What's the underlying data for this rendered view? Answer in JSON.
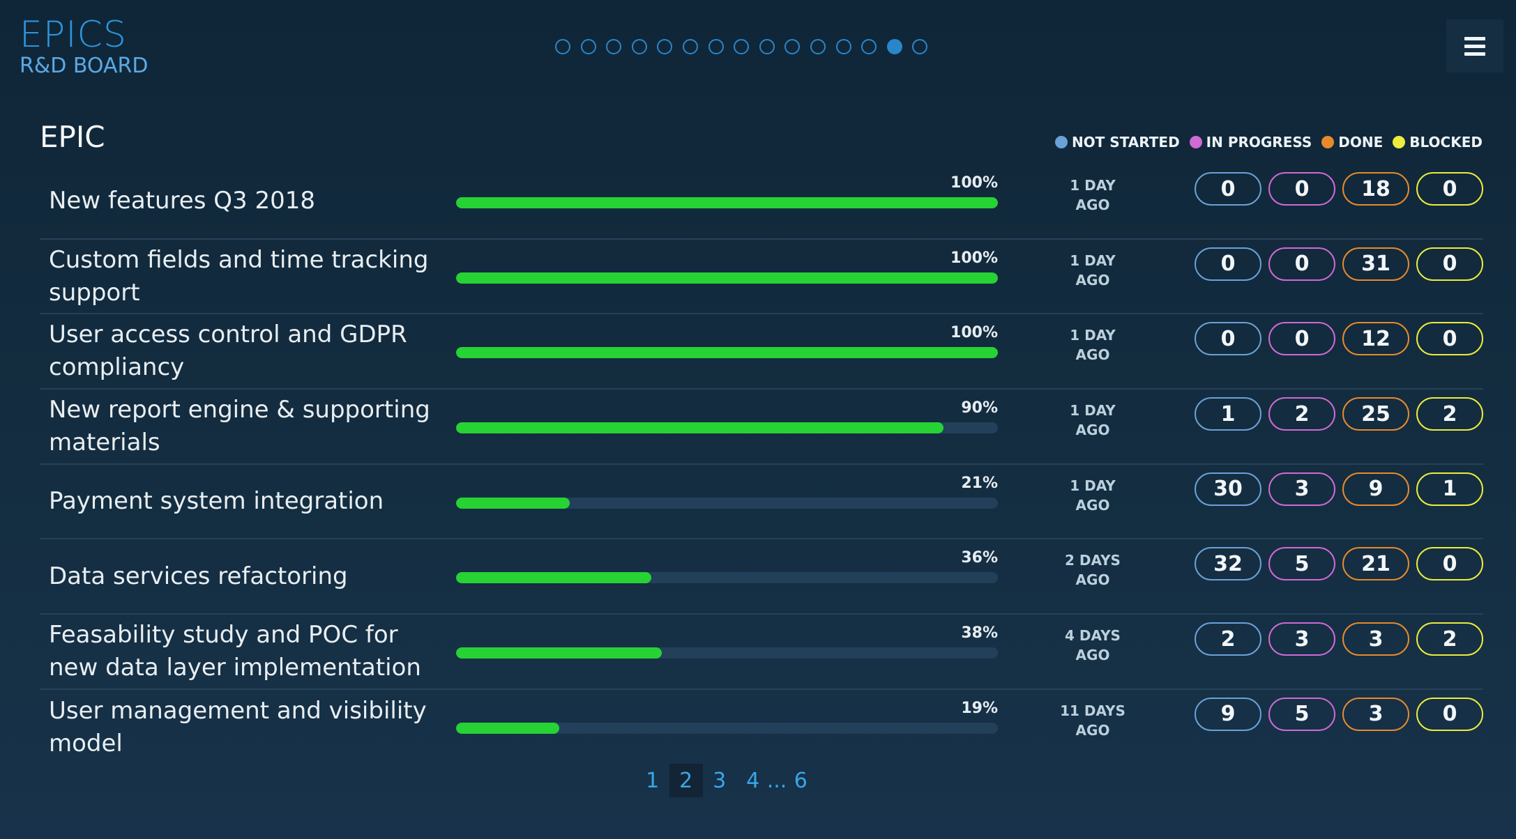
{
  "header": {
    "title": "EPICS",
    "subtitle": "R&D BOARD",
    "carousel_total": 15,
    "carousel_active": 14
  },
  "section": {
    "title": "EPIC"
  },
  "legend": [
    {
      "label": "NOT STARTED",
      "color": "#6aa2d8"
    },
    {
      "label": "IN PROGRESS",
      "color": "#d06ad4"
    },
    {
      "label": "DONE",
      "color": "#e88a2c"
    },
    {
      "label": "BLOCKED",
      "color": "#ecec3e"
    }
  ],
  "epics": [
    {
      "name": "New features Q3 2018",
      "percent": "100%",
      "progress": 1.0,
      "ago_line1": "1 DAY",
      "ago_line2": "AGO",
      "not_started": "0",
      "in_progress": "0",
      "done": "18",
      "blocked": "0"
    },
    {
      "name": "Custom fields and time tracking support",
      "percent": "100%",
      "progress": 1.0,
      "ago_line1": "1 DAY",
      "ago_line2": "AGO",
      "not_started": "0",
      "in_progress": "0",
      "done": "31",
      "blocked": "0"
    },
    {
      "name": "User access control and GDPR compliancy",
      "percent": "100%",
      "progress": 1.0,
      "ago_line1": "1 DAY",
      "ago_line2": "AGO",
      "not_started": "0",
      "in_progress": "0",
      "done": "12",
      "blocked": "0"
    },
    {
      "name": "New report engine & supporting materials",
      "percent": "90%",
      "progress": 0.9,
      "ago_line1": "1 DAY",
      "ago_line2": "AGO",
      "not_started": "1",
      "in_progress": "2",
      "done": "25",
      "blocked": "2"
    },
    {
      "name": "Payment system integration",
      "percent": "21%",
      "progress": 0.21,
      "ago_line1": "1 DAY",
      "ago_line2": "AGO",
      "not_started": "30",
      "in_progress": "3",
      "done": "9",
      "blocked": "1"
    },
    {
      "name": "Data services refactoring",
      "percent": "36%",
      "progress": 0.36,
      "ago_line1": "2 DAYS",
      "ago_line2": "AGO",
      "not_started": "32",
      "in_progress": "5",
      "done": "21",
      "blocked": "0"
    },
    {
      "name": "Feasability study and POC for new data layer implementation",
      "percent": "38%",
      "progress": 0.38,
      "ago_line1": "4 DAYS",
      "ago_line2": "AGO",
      "not_started": "2",
      "in_progress": "3",
      "done": "3",
      "blocked": "2"
    },
    {
      "name": "User management and visibility model",
      "percent": "19%",
      "progress": 0.19,
      "ago_line1": "11 DAYS",
      "ago_line2": "AGO",
      "not_started": "9",
      "in_progress": "5",
      "done": "3",
      "blocked": "0"
    }
  ],
  "pagination": {
    "pages": [
      "1",
      "2",
      "3",
      "4"
    ],
    "active": "2",
    "ellipsis": "...",
    "last": "6"
  }
}
